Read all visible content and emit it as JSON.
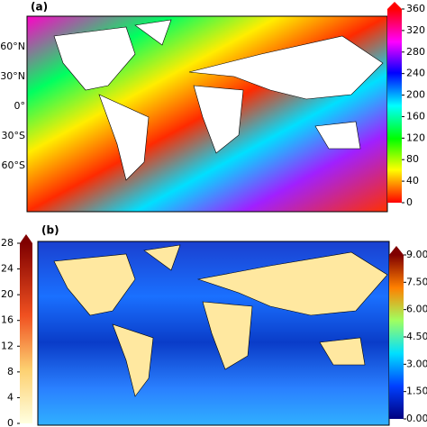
{
  "panels": [
    {
      "label": "(a)",
      "lat_labels": [
        "60°N",
        "30°N",
        "0°",
        "30°S",
        "60°S"
      ],
      "colorbar": {
        "range": [
          0,
          360
        ],
        "ticks": [
          0,
          40,
          80,
          120,
          160,
          200,
          240,
          280,
          320,
          360
        ]
      }
    },
    {
      "label": "(b)",
      "colorbar_left": {
        "range": [
          0,
          28
        ],
        "ticks": [
          0,
          4,
          8,
          12,
          16,
          20,
          24,
          28
        ]
      },
      "colorbar_right": {
        "range": [
          0,
          9
        ],
        "ticks": [
          {
            "value": 0,
            "label": "0.00"
          },
          {
            "value": 1.5,
            "label": "1.50"
          },
          {
            "value": 3,
            "label": "3.00"
          },
          {
            "value": 4.5,
            "label": "4.50"
          },
          {
            "value": 6,
            "label": "6.00"
          },
          {
            "value": 7.5,
            "label": "7.50"
          },
          {
            "value": 9,
            "label": "9.00"
          }
        ]
      }
    }
  ]
}
